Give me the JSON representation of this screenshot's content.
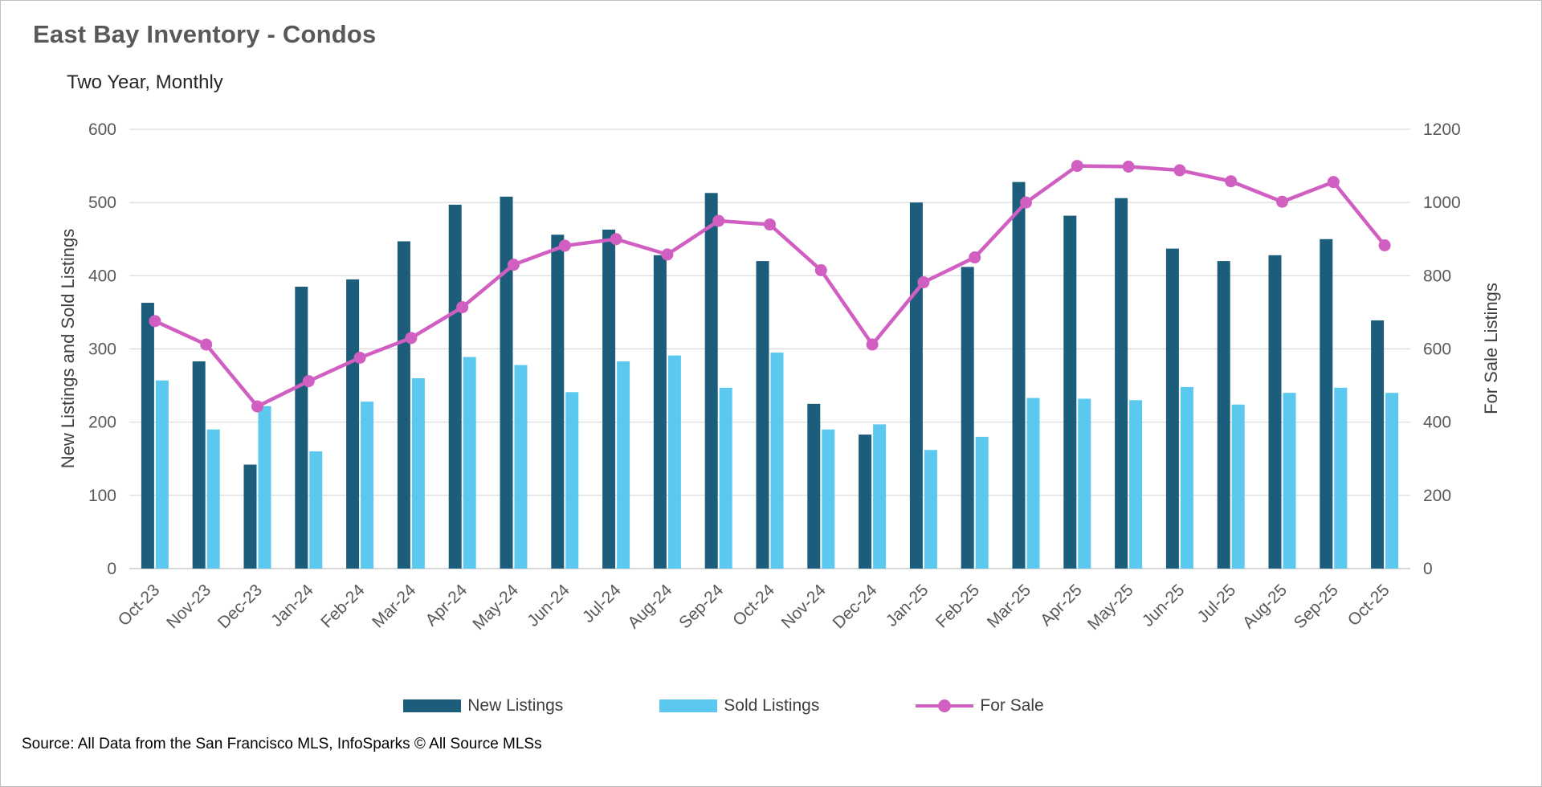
{
  "chart_data": {
    "type": "bar",
    "title": "East Bay Inventory - Condos",
    "subtitle": "Two Year, Monthly",
    "source": "Source: All Data from the San Francisco MLS, InfoSparks © All Source MLSs",
    "ylabel_left": "New Listings and Sold Listings",
    "ylabel_right": "For Sale Listings",
    "ylim_left": [
      0,
      600
    ],
    "ylim_right": [
      0,
      1200
    ],
    "left_ticks": [
      0,
      100,
      200,
      300,
      400,
      500,
      600
    ],
    "right_ticks": [
      0,
      200,
      400,
      600,
      800,
      1000,
      1200
    ],
    "grid": "horizontal",
    "legend_position": "bottom",
    "categories": [
      "Oct-23",
      "Nov-23",
      "Dec-23",
      "Jan-24",
      "Feb-24",
      "Mar-24",
      "Apr-24",
      "May-24",
      "Jun-24",
      "Jul-24",
      "Aug-24",
      "Sep-24",
      "Oct-24",
      "Nov-24",
      "Dec-24",
      "Jan-25",
      "Feb-25",
      "Mar-25",
      "Apr-25",
      "May-25",
      "Jun-25",
      "Jul-25",
      "Aug-25",
      "Sep-25",
      "Oct-25"
    ],
    "series": [
      {
        "name": "New Listings",
        "type": "bar",
        "axis": "left",
        "values": [
          363,
          283,
          142,
          385,
          395,
          447,
          497,
          508,
          456,
          463,
          428,
          513,
          420,
          225,
          183,
          500,
          412,
          528,
          482,
          506,
          437,
          420,
          428,
          450,
          339
        ]
      },
      {
        "name": "Sold Listings",
        "type": "bar",
        "axis": "left",
        "values": [
          257,
          190,
          222,
          160,
          228,
          260,
          289,
          278,
          241,
          283,
          291,
          247,
          295,
          190,
          197,
          162,
          180,
          233,
          232,
          230,
          248,
          224,
          240,
          247,
          240
        ]
      },
      {
        "name": "For Sale",
        "type": "line",
        "axis": "right",
        "values": [
          676,
          612,
          443,
          512,
          576,
          630,
          714,
          830,
          882,
          900,
          858,
          950,
          940,
          815,
          612,
          782,
          850,
          1000,
          1100,
          1098,
          1088,
          1058,
          1002,
          1056,
          883
        ]
      }
    ],
    "colors": {
      "new_listings": "#1C5D7C",
      "sold_listings": "#5BC8EF",
      "for_sale": "#D15FC1",
      "grid": "#D9D9D9",
      "axis_line": "#C0C0C0",
      "axis_text": "#595959"
    }
  }
}
